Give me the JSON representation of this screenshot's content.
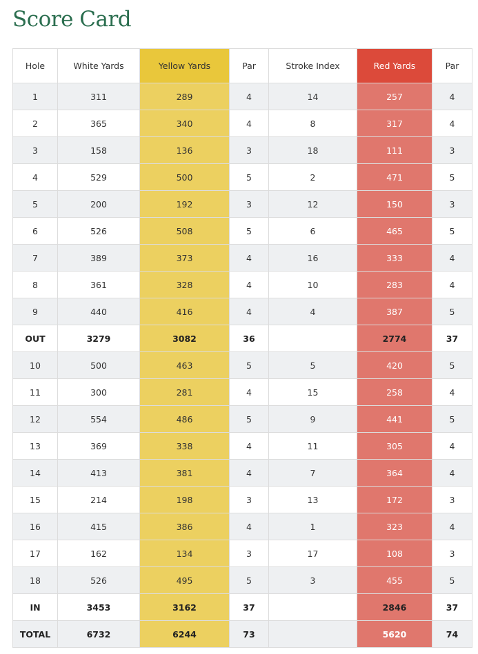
{
  "title": "Score Card",
  "table": {
    "headers": [
      "Hole",
      "White Yards",
      "Yellow Yards",
      "Par",
      "Stroke Index",
      "Red Yards",
      "Par"
    ],
    "rows": [
      [
        "1",
        311,
        289,
        4,
        14,
        257,
        4
      ],
      [
        "2",
        365,
        340,
        4,
        8,
        317,
        4
      ],
      [
        "3",
        158,
        136,
        3,
        18,
        111,
        3
      ],
      [
        "4",
        529,
        500,
        5,
        2,
        471,
        5
      ],
      [
        "5",
        200,
        192,
        3,
        12,
        150,
        3
      ],
      [
        "6",
        526,
        508,
        5,
        6,
        465,
        5
      ],
      [
        "7",
        389,
        373,
        4,
        16,
        333,
        4
      ],
      [
        "8",
        361,
        328,
        4,
        10,
        283,
        4
      ],
      [
        "9",
        440,
        416,
        4,
        4,
        387,
        5
      ],
      [
        "OUT",
        3279,
        3082,
        36,
        null,
        2774,
        37
      ],
      [
        "10",
        500,
        463,
        5,
        5,
        420,
        5
      ],
      [
        "11",
        300,
        281,
        4,
        15,
        258,
        4
      ],
      [
        "12",
        554,
        486,
        5,
        9,
        441,
        5
      ],
      [
        "13",
        369,
        338,
        4,
        11,
        305,
        4
      ],
      [
        "14",
        413,
        381,
        4,
        7,
        364,
        4
      ],
      [
        "15",
        214,
        198,
        3,
        13,
        172,
        3
      ],
      [
        "16",
        415,
        386,
        4,
        1,
        323,
        4
      ],
      [
        "17",
        162,
        134,
        3,
        17,
        108,
        3
      ],
      [
        "18",
        526,
        495,
        5,
        3,
        455,
        5
      ],
      [
        "IN",
        3453,
        3162,
        37,
        null,
        2846,
        37
      ],
      [
        "TOTAL",
        6732,
        6244,
        73,
        null,
        5620,
        74
      ]
    ]
  }
}
